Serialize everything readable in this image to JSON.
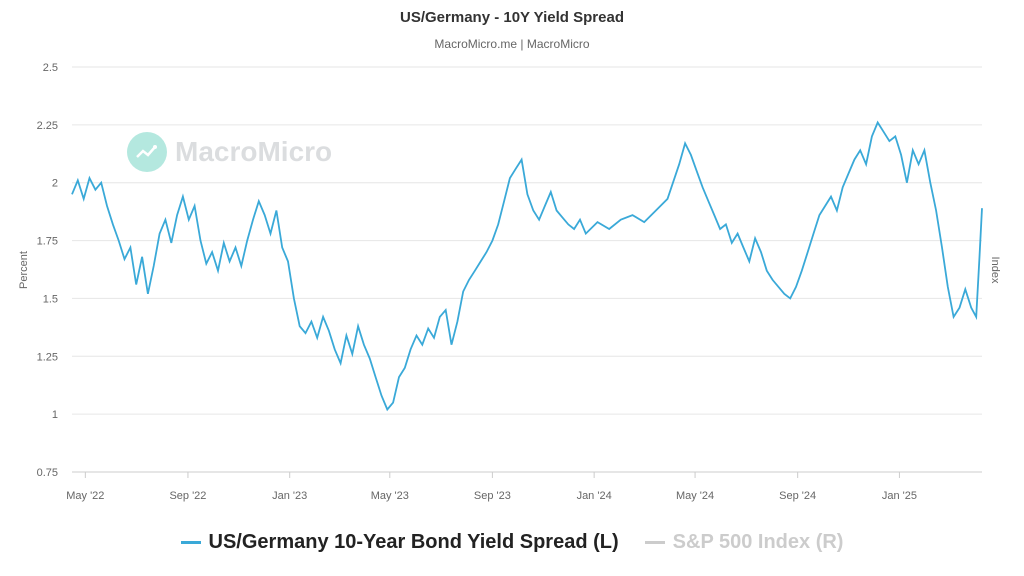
{
  "header": {
    "title": "US/Germany - 10Y Yield Spread",
    "subtitle": "MacroMicro.me | MacroMicro"
  },
  "watermark": {
    "text": "MacroMicro",
    "icon": "chart-logo-icon"
  },
  "colors": {
    "series_line": "#3aa9d8",
    "grid": "#e6e6e6",
    "legend_inactive": "#cccccc",
    "legend_active_text": "#222222"
  },
  "legend": {
    "items": [
      {
        "label": "US/Germany 10-Year Bond Yield Spread (L)",
        "active": true
      },
      {
        "label": "S&P 500 Index (R)",
        "active": false
      }
    ]
  },
  "chart_data": {
    "type": "line",
    "ylabel": "Percent",
    "y2label": "Index",
    "ylim": [
      0.75,
      2.5
    ],
    "yticks": [
      0.75,
      1,
      1.25,
      1.5,
      1.75,
      2,
      2.25,
      2.5
    ],
    "ytick_labels": [
      "0.75",
      "1",
      "1.25",
      "1.5",
      "1.75",
      "2",
      "2.25",
      "2.5"
    ],
    "xlim": [
      "2022-04-15",
      "2025-04-10"
    ],
    "xticks": [
      {
        "date": "2022-05-01",
        "label": "May '22"
      },
      {
        "date": "2022-09-01",
        "label": "Sep '22"
      },
      {
        "date": "2023-01-01",
        "label": "Jan '23"
      },
      {
        "date": "2023-05-01",
        "label": "May '23"
      },
      {
        "date": "2023-09-01",
        "label": "Sep '23"
      },
      {
        "date": "2024-01-01",
        "label": "Jan '24"
      },
      {
        "date": "2024-05-01",
        "label": "May '24"
      },
      {
        "date": "2024-09-01",
        "label": "Sep '24"
      },
      {
        "date": "2025-01-01",
        "label": "Jan '25"
      }
    ],
    "grid": true,
    "legend_position": "bottom",
    "series": [
      {
        "name": "US/Germany 10-Year Bond Yield Spread (L)",
        "points": [
          [
            "2022-04-15",
            1.95
          ],
          [
            "2022-04-22",
            2.01
          ],
          [
            "2022-04-29",
            1.93
          ],
          [
            "2022-05-06",
            2.02
          ],
          [
            "2022-05-13",
            1.97
          ],
          [
            "2022-05-20",
            2.0
          ],
          [
            "2022-05-27",
            1.9
          ],
          [
            "2022-06-03",
            1.82
          ],
          [
            "2022-06-10",
            1.75
          ],
          [
            "2022-06-17",
            1.67
          ],
          [
            "2022-06-24",
            1.72
          ],
          [
            "2022-07-01",
            1.56
          ],
          [
            "2022-07-08",
            1.68
          ],
          [
            "2022-07-15",
            1.52
          ],
          [
            "2022-07-22",
            1.64
          ],
          [
            "2022-07-29",
            1.78
          ],
          [
            "2022-08-05",
            1.84
          ],
          [
            "2022-08-12",
            1.74
          ],
          [
            "2022-08-19",
            1.86
          ],
          [
            "2022-08-26",
            1.94
          ],
          [
            "2022-09-02",
            1.84
          ],
          [
            "2022-09-09",
            1.9
          ],
          [
            "2022-09-16",
            1.75
          ],
          [
            "2022-09-23",
            1.65
          ],
          [
            "2022-09-30",
            1.7
          ],
          [
            "2022-10-07",
            1.62
          ],
          [
            "2022-10-14",
            1.74
          ],
          [
            "2022-10-21",
            1.66
          ],
          [
            "2022-10-28",
            1.72
          ],
          [
            "2022-11-04",
            1.64
          ],
          [
            "2022-11-11",
            1.75
          ],
          [
            "2022-11-18",
            1.84
          ],
          [
            "2022-11-25",
            1.92
          ],
          [
            "2022-12-02",
            1.86
          ],
          [
            "2022-12-09",
            1.78
          ],
          [
            "2022-12-16",
            1.88
          ],
          [
            "2022-12-23",
            1.72
          ],
          [
            "2022-12-30",
            1.66
          ],
          [
            "2023-01-06",
            1.5
          ],
          [
            "2023-01-13",
            1.38
          ],
          [
            "2023-01-20",
            1.35
          ],
          [
            "2023-01-27",
            1.4
          ],
          [
            "2023-02-03",
            1.33
          ],
          [
            "2023-02-10",
            1.42
          ],
          [
            "2023-02-17",
            1.36
          ],
          [
            "2023-02-24",
            1.28
          ],
          [
            "2023-03-03",
            1.22
          ],
          [
            "2023-03-10",
            1.34
          ],
          [
            "2023-03-17",
            1.26
          ],
          [
            "2023-03-24",
            1.38
          ],
          [
            "2023-03-31",
            1.3
          ],
          [
            "2023-04-07",
            1.24
          ],
          [
            "2023-04-14",
            1.16
          ],
          [
            "2023-04-21",
            1.08
          ],
          [
            "2023-04-28",
            1.02
          ],
          [
            "2023-05-05",
            1.05
          ],
          [
            "2023-05-12",
            1.16
          ],
          [
            "2023-05-19",
            1.2
          ],
          [
            "2023-05-26",
            1.28
          ],
          [
            "2023-06-02",
            1.34
          ],
          [
            "2023-06-09",
            1.3
          ],
          [
            "2023-06-16",
            1.37
          ],
          [
            "2023-06-23",
            1.33
          ],
          [
            "2023-06-30",
            1.42
          ],
          [
            "2023-07-07",
            1.45
          ],
          [
            "2023-07-14",
            1.3
          ],
          [
            "2023-07-21",
            1.4
          ],
          [
            "2023-07-28",
            1.53
          ],
          [
            "2023-08-04",
            1.58
          ],
          [
            "2023-08-11",
            1.62
          ],
          [
            "2023-08-18",
            1.66
          ],
          [
            "2023-08-25",
            1.7
          ],
          [
            "2023-09-01",
            1.75
          ],
          [
            "2023-09-08",
            1.82
          ],
          [
            "2023-09-15",
            1.92
          ],
          [
            "2023-09-22",
            2.02
          ],
          [
            "2023-09-29",
            2.06
          ],
          [
            "2023-10-06",
            2.1
          ],
          [
            "2023-10-13",
            1.95
          ],
          [
            "2023-10-20",
            1.88
          ],
          [
            "2023-10-27",
            1.84
          ],
          [
            "2023-11-03",
            1.9
          ],
          [
            "2023-11-10",
            1.96
          ],
          [
            "2023-11-17",
            1.88
          ],
          [
            "2023-11-24",
            1.85
          ],
          [
            "2023-12-01",
            1.82
          ],
          [
            "2023-12-08",
            1.8
          ],
          [
            "2023-12-15",
            1.84
          ],
          [
            "2023-12-22",
            1.78
          ],
          [
            "2024-01-05",
            1.83
          ],
          [
            "2024-01-19",
            1.8
          ],
          [
            "2024-02-02",
            1.84
          ],
          [
            "2024-02-16",
            1.86
          ],
          [
            "2024-03-01",
            1.83
          ],
          [
            "2024-03-15",
            1.88
          ],
          [
            "2024-03-29",
            1.93
          ],
          [
            "2024-04-12",
            2.08
          ],
          [
            "2024-04-19",
            2.17
          ],
          [
            "2024-04-26",
            2.12
          ],
          [
            "2024-05-03",
            2.05
          ],
          [
            "2024-05-10",
            1.98
          ],
          [
            "2024-05-17",
            1.92
          ],
          [
            "2024-05-24",
            1.86
          ],
          [
            "2024-05-31",
            1.8
          ],
          [
            "2024-06-07",
            1.82
          ],
          [
            "2024-06-14",
            1.74
          ],
          [
            "2024-06-21",
            1.78
          ],
          [
            "2024-06-28",
            1.72
          ],
          [
            "2024-07-05",
            1.66
          ],
          [
            "2024-07-12",
            1.76
          ],
          [
            "2024-07-19",
            1.7
          ],
          [
            "2024-07-26",
            1.62
          ],
          [
            "2024-08-02",
            1.58
          ],
          [
            "2024-08-09",
            1.55
          ],
          [
            "2024-08-16",
            1.52
          ],
          [
            "2024-08-23",
            1.5
          ],
          [
            "2024-08-30",
            1.55
          ],
          [
            "2024-09-06",
            1.62
          ],
          [
            "2024-09-13",
            1.7
          ],
          [
            "2024-09-20",
            1.78
          ],
          [
            "2024-09-27",
            1.86
          ],
          [
            "2024-10-04",
            1.9
          ],
          [
            "2024-10-11",
            1.94
          ],
          [
            "2024-10-18",
            1.88
          ],
          [
            "2024-10-25",
            1.98
          ],
          [
            "2024-11-01",
            2.04
          ],
          [
            "2024-11-08",
            2.1
          ],
          [
            "2024-11-15",
            2.14
          ],
          [
            "2024-11-22",
            2.08
          ],
          [
            "2024-11-29",
            2.2
          ],
          [
            "2024-12-06",
            2.26
          ],
          [
            "2024-12-13",
            2.22
          ],
          [
            "2024-12-20",
            2.18
          ],
          [
            "2024-12-27",
            2.2
          ],
          [
            "2025-01-03",
            2.12
          ],
          [
            "2025-01-10",
            2.0
          ],
          [
            "2025-01-17",
            2.14
          ],
          [
            "2025-01-24",
            2.08
          ],
          [
            "2025-01-31",
            2.14
          ],
          [
            "2025-02-07",
            2.0
          ],
          [
            "2025-02-14",
            1.88
          ],
          [
            "2025-02-21",
            1.72
          ],
          [
            "2025-02-28",
            1.55
          ],
          [
            "2025-03-07",
            1.42
          ],
          [
            "2025-03-14",
            1.46
          ],
          [
            "2025-03-21",
            1.54
          ],
          [
            "2025-03-28",
            1.46
          ],
          [
            "2025-04-03",
            1.42
          ],
          [
            "2025-04-07",
            1.68
          ],
          [
            "2025-04-10",
            1.89
          ]
        ]
      }
    ]
  }
}
